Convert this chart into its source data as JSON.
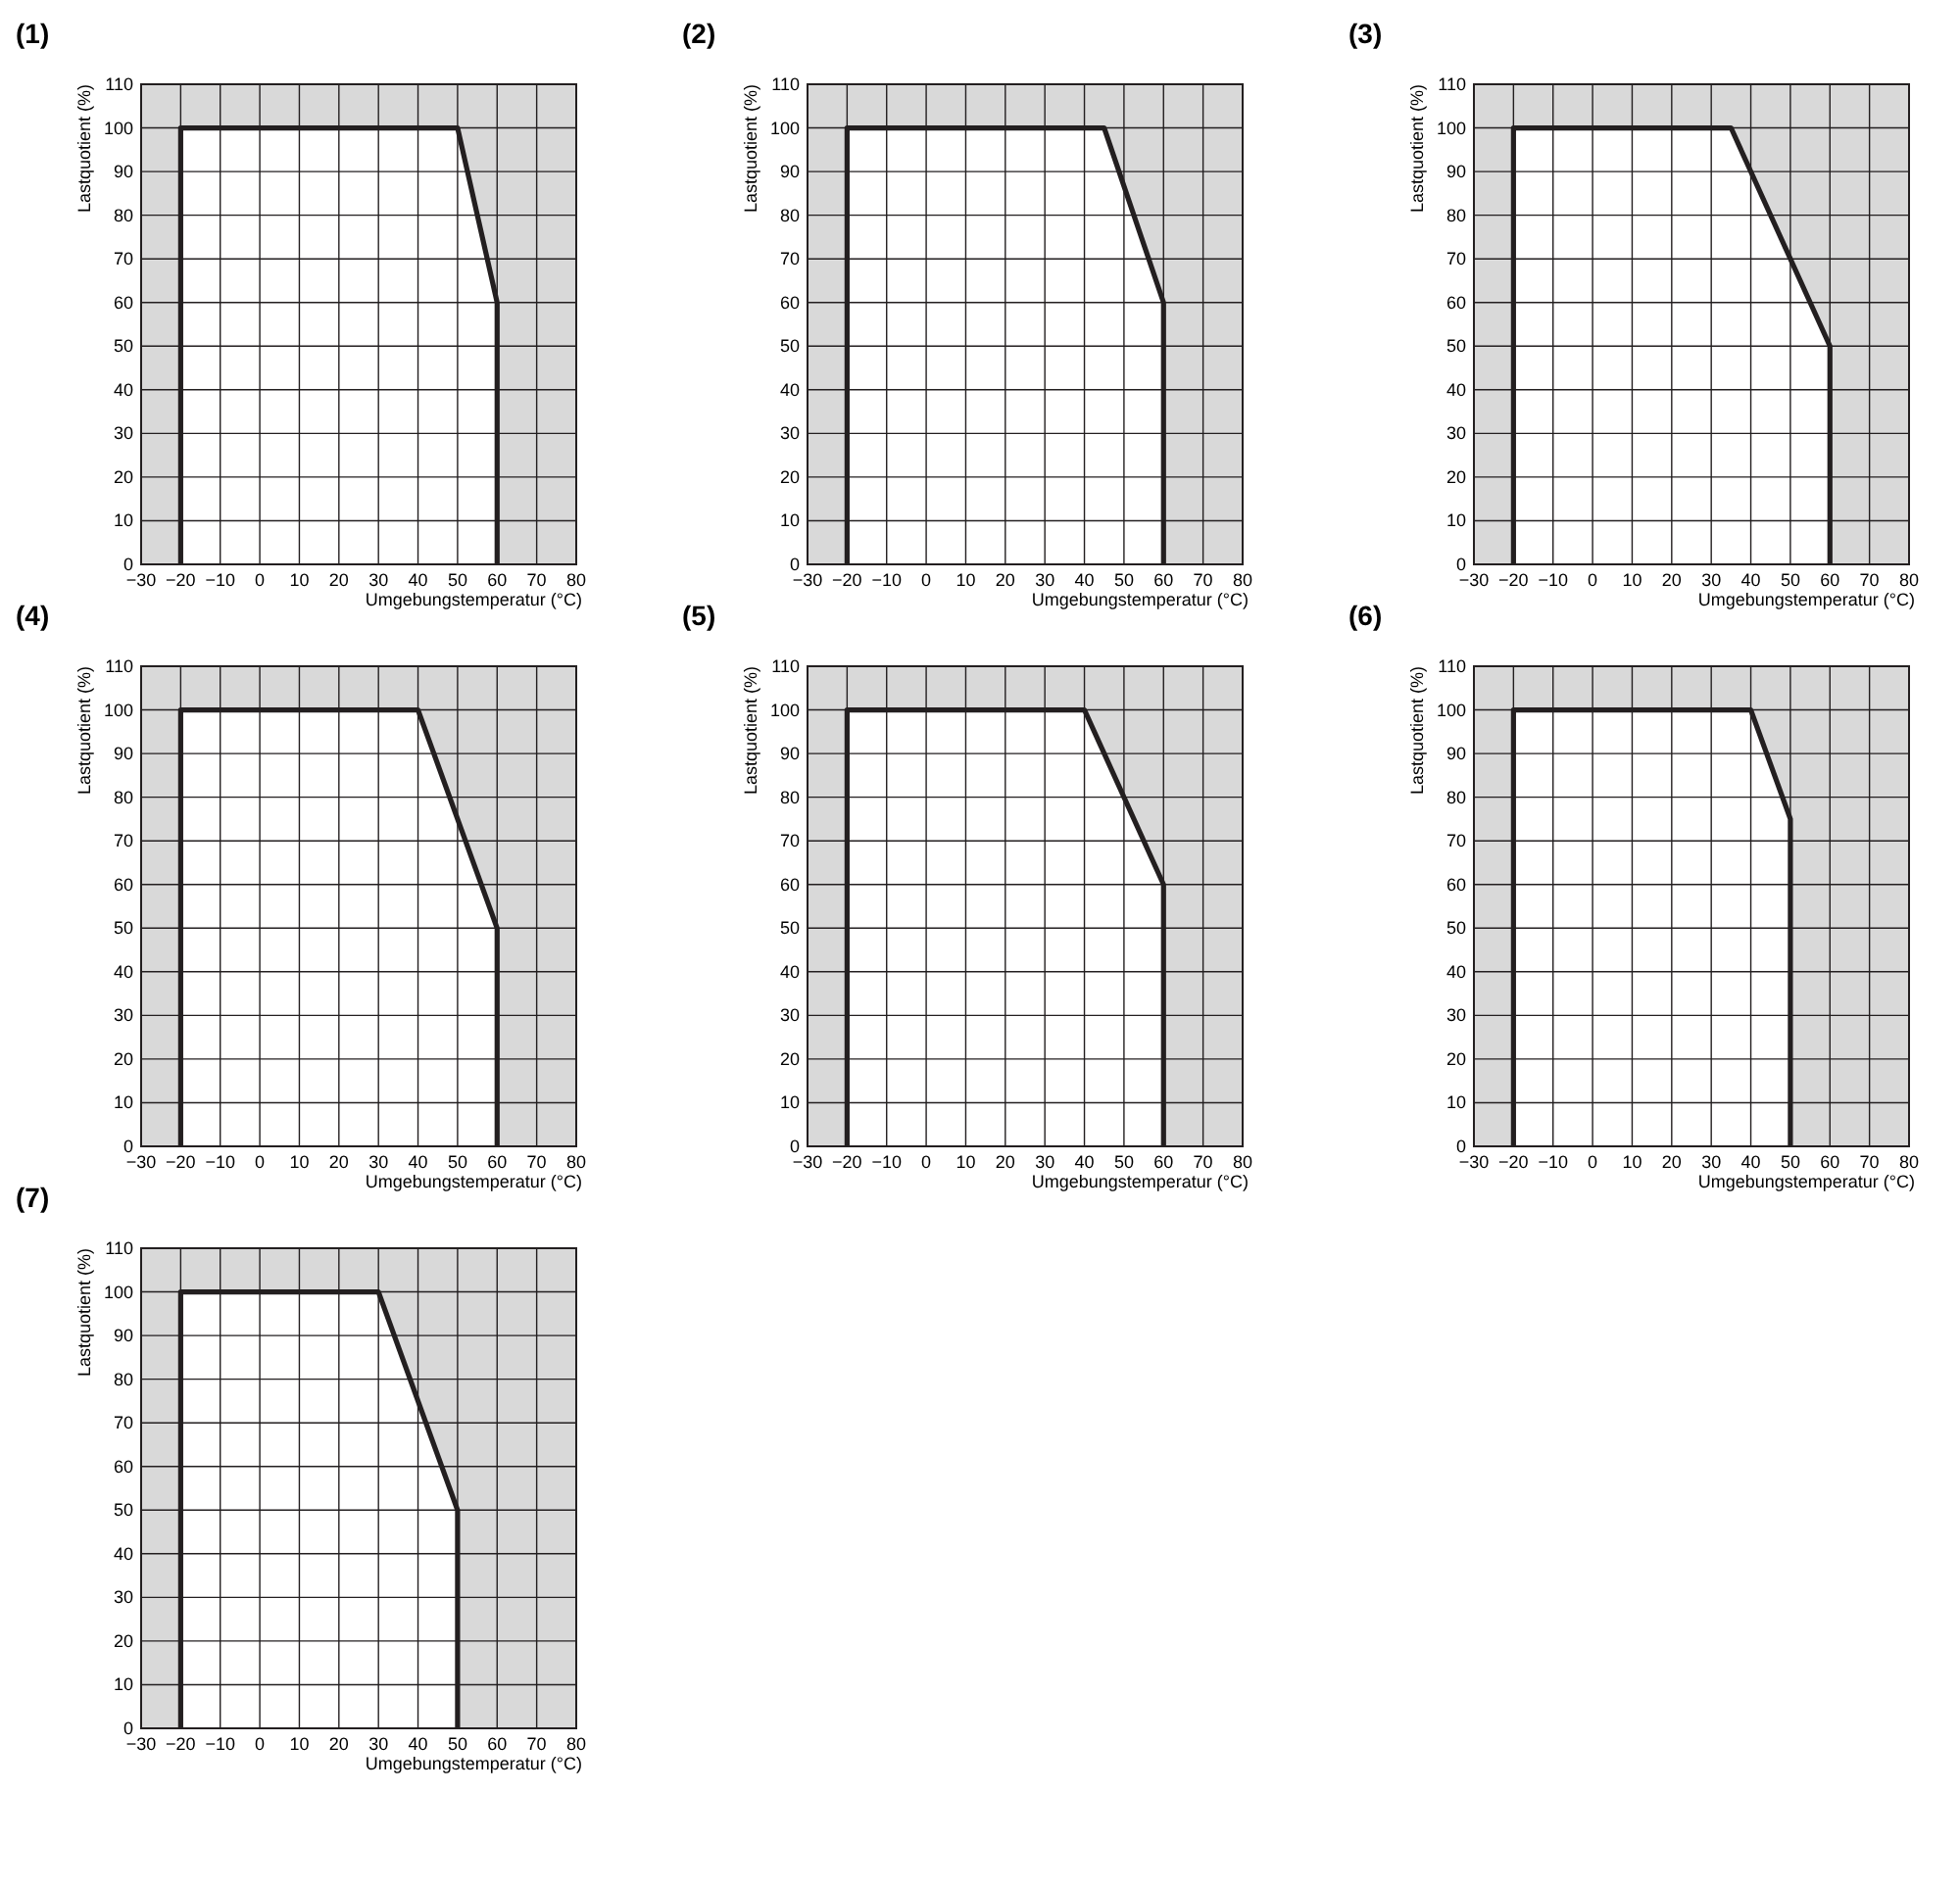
{
  "chart_data": [
    {
      "type": "area",
      "title": "(1)",
      "xlabel": "Umgebungstemperatur (°C)",
      "ylabel": "Lastquotient (%)",
      "xlim": [
        -30,
        80
      ],
      "ylim": [
        0,
        110
      ],
      "xticks": [
        {
          "value": -30,
          "label": "−30"
        },
        {
          "value": -20,
          "label": "−20"
        },
        {
          "value": -10,
          "label": "−10"
        },
        0,
        10,
        20,
        30,
        40,
        50,
        60,
        70,
        80
      ],
      "yticks": [
        0,
        10,
        20,
        30,
        40,
        50,
        60,
        70,
        80,
        90,
        100,
        110
      ],
      "grid": true,
      "series": [
        {
          "color": "#231f20",
          "x": [
            -20,
            -20,
            50,
            60,
            60
          ],
          "values": [
            0,
            100,
            100,
            60,
            0
          ]
        }
      ]
    },
    {
      "type": "area",
      "title": "(2)",
      "xlabel": "Umgebungstemperatur (°C)",
      "ylabel": "Lastquotient (%)",
      "xlim": [
        -30,
        80
      ],
      "ylim": [
        0,
        110
      ],
      "xticks": [
        {
          "value": -30,
          "label": "−30"
        },
        {
          "value": -20,
          "label": "−20"
        },
        {
          "value": -10,
          "label": "−10"
        },
        0,
        10,
        20,
        30,
        40,
        50,
        60,
        70,
        80
      ],
      "yticks": [
        0,
        10,
        20,
        30,
        40,
        50,
        60,
        70,
        80,
        90,
        100,
        110
      ],
      "grid": true,
      "series": [
        {
          "color": "#231f20",
          "x": [
            -20,
            -20,
            45,
            60,
            60
          ],
          "values": [
            0,
            100,
            100,
            60,
            0
          ]
        }
      ]
    },
    {
      "type": "area",
      "title": "(3)",
      "xlabel": "Umgebungstemperatur (°C)",
      "ylabel": "Lastquotient (%)",
      "xlim": [
        -30,
        80
      ],
      "ylim": [
        0,
        110
      ],
      "xticks": [
        {
          "value": -30,
          "label": "−30"
        },
        {
          "value": -20,
          "label": "−20"
        },
        {
          "value": -10,
          "label": "−10"
        },
        0,
        10,
        20,
        30,
        40,
        50,
        60,
        70,
        80
      ],
      "yticks": [
        0,
        10,
        20,
        30,
        40,
        50,
        60,
        70,
        80,
        90,
        100,
        110
      ],
      "grid": true,
      "series": [
        {
          "color": "#231f20",
          "x": [
            -20,
            -20,
            35,
            60,
            60
          ],
          "values": [
            0,
            100,
            100,
            50,
            0
          ]
        }
      ]
    },
    {
      "type": "area",
      "title": "(4)",
      "xlabel": "Umgebungstemperatur (°C)",
      "ylabel": "Lastquotient (%)",
      "xlim": [
        -30,
        80
      ],
      "ylim": [
        0,
        110
      ],
      "xticks": [
        {
          "value": -30,
          "label": "−30"
        },
        {
          "value": -20,
          "label": "−20"
        },
        {
          "value": -10,
          "label": "−10"
        },
        0,
        10,
        20,
        30,
        40,
        50,
        60,
        70,
        80
      ],
      "yticks": [
        0,
        10,
        20,
        30,
        40,
        50,
        60,
        70,
        80,
        90,
        100,
        110
      ],
      "grid": true,
      "series": [
        {
          "color": "#231f20",
          "x": [
            -20,
            -20,
            40,
            60,
            60
          ],
          "values": [
            0,
            100,
            100,
            50,
            0
          ]
        }
      ]
    },
    {
      "type": "area",
      "title": "(5)",
      "xlabel": "Umgebungstemperatur (°C)",
      "ylabel": "Lastquotient (%)",
      "xlim": [
        -30,
        80
      ],
      "ylim": [
        0,
        110
      ],
      "xticks": [
        {
          "value": -30,
          "label": "−30"
        },
        {
          "value": -20,
          "label": "−20"
        },
        {
          "value": -10,
          "label": "−10"
        },
        0,
        10,
        20,
        30,
        40,
        50,
        60,
        70,
        80
      ],
      "yticks": [
        0,
        10,
        20,
        30,
        40,
        50,
        60,
        70,
        80,
        90,
        100,
        110
      ],
      "grid": true,
      "series": [
        {
          "color": "#231f20",
          "x": [
            -20,
            -20,
            40,
            60,
            60
          ],
          "values": [
            0,
            100,
            100,
            60,
            0
          ]
        }
      ]
    },
    {
      "type": "area",
      "title": "(6)",
      "xlabel": "Umgebungstemperatur (°C)",
      "ylabel": "Lastquotient (%)",
      "xlim": [
        -30,
        80
      ],
      "ylim": [
        0,
        110
      ],
      "xticks": [
        {
          "value": -30,
          "label": "−30"
        },
        {
          "value": -20,
          "label": "−20"
        },
        {
          "value": -10,
          "label": "−10"
        },
        0,
        10,
        20,
        30,
        40,
        50,
        60,
        70,
        80
      ],
      "yticks": [
        0,
        10,
        20,
        30,
        40,
        50,
        60,
        70,
        80,
        90,
        100,
        110
      ],
      "grid": true,
      "series": [
        {
          "color": "#231f20",
          "x": [
            -20,
            -20,
            40,
            50,
            50
          ],
          "values": [
            0,
            100,
            100,
            75,
            0
          ]
        }
      ]
    },
    {
      "type": "area",
      "title": "(7)",
      "xlabel": "Umgebungstemperatur (°C)",
      "ylabel": "Lastquotient (%)",
      "xlim": [
        -30,
        80
      ],
      "ylim": [
        0,
        110
      ],
      "xticks": [
        {
          "value": -30,
          "label": "−30"
        },
        {
          "value": -20,
          "label": "−20"
        },
        {
          "value": -10,
          "label": "−10"
        },
        0,
        10,
        20,
        30,
        40,
        50,
        60,
        70,
        80
      ],
      "yticks": [
        0,
        10,
        20,
        30,
        40,
        50,
        60,
        70,
        80,
        90,
        100,
        110
      ],
      "grid": true,
      "series": [
        {
          "color": "#231f20",
          "x": [
            -20,
            -20,
            30,
            50,
            50
          ],
          "values": [
            0,
            100,
            100,
            50,
            0
          ]
        }
      ]
    }
  ]
}
